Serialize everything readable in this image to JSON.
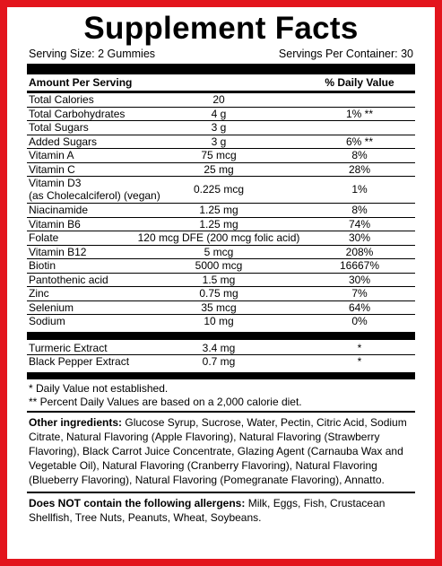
{
  "title": "Supplement Facts",
  "serving_size": "Serving Size: 2 Gummies",
  "servings_per_container": "Servings Per Container: 30",
  "header": {
    "amount": "Amount Per Serving",
    "dv": "% Daily Value"
  },
  "rows": [
    {
      "name": [
        "Total Calories"
      ],
      "amount": "20"
    },
    {
      "name": [
        "Total Carbohydrates"
      ],
      "amount": "4 g",
      "dv": "1% **"
    },
    {
      "name": [
        "Total Sugars"
      ],
      "amount": "3 g"
    },
    {
      "name": [
        "Added Sugars"
      ],
      "amount": "3 g",
      "dv": "6% **"
    },
    {
      "name": [
        "Vitamin A"
      ],
      "amount": "75 mcg",
      "dv": "8%"
    },
    {
      "name": [
        "Vitamin C"
      ],
      "amount": "25 mg",
      "dv": "28%"
    },
    {
      "name": [
        "Vitamin D3",
        "(as Cholecalciferol) (vegan)"
      ],
      "amount": "0.225 mcg",
      "dv": "1%"
    },
    {
      "name": [
        "Niacinamide"
      ],
      "amount": "1.25 mg",
      "dv": "8%"
    },
    {
      "name": [
        "Vitamin B6"
      ],
      "amount": "1.25 mg",
      "dv": "74%"
    },
    {
      "name": [
        "Folate"
      ],
      "amount": "120 mcg DFE (200 mcg folic acid)",
      "dv": "30%"
    },
    {
      "name": [
        "Vitamin B12"
      ],
      "amount": "5 mcg",
      "dv": "208%"
    },
    {
      "name": [
        "Biotin"
      ],
      "amount": "5000 mcg",
      "dv": "16667%"
    },
    {
      "name": [
        "Pantothenic acid"
      ],
      "amount": "1.5 mg",
      "dv": "30%"
    },
    {
      "name": [
        "Zinc"
      ],
      "amount": "0.75 mg",
      "dv": "7%"
    },
    {
      "name": [
        "Selenium"
      ],
      "amount": "35 mcg",
      "dv": "64%"
    },
    {
      "name": [
        "Sodium"
      ],
      "amount": "10 mg",
      "dv": "0%"
    }
  ],
  "extracts": [
    {
      "name": [
        "Turmeric Extract"
      ],
      "amount": "3.4 mg",
      "dv": "*"
    },
    {
      "name": [
        "Black Pepper Extract"
      ],
      "amount": "0.7 mg",
      "dv": "*"
    }
  ],
  "footnotes": [
    "* Daily Value not established.",
    "** Percent Daily Values are based on a 2,000 calorie diet."
  ],
  "other_ingredients": {
    "label": "Other ingredients:",
    "text": "Glucose Syrup, Sucrose, Water, Pectin, Citric Acid, Sodium Citrate, Natural Flavoring (Apple Flavoring), Natural Flavoring (Strawberry Flavoring), Black Carrot Juice Concentrate, Glazing Agent (Carnauba Wax and Vegetable Oil), Natural Flavoring (Cranberry Flavoring), Natural Flavoring (Blueberry Flavoring), Natural Flavoring (Pomegranate Flavoring), Annatto."
  },
  "allergens": {
    "label": "Does NOT contain the following allergens:",
    "text": "Milk, Eggs, Fish, Crustacean Shellfish, Tree Nuts, Peanuts, Wheat, Soybeans."
  }
}
